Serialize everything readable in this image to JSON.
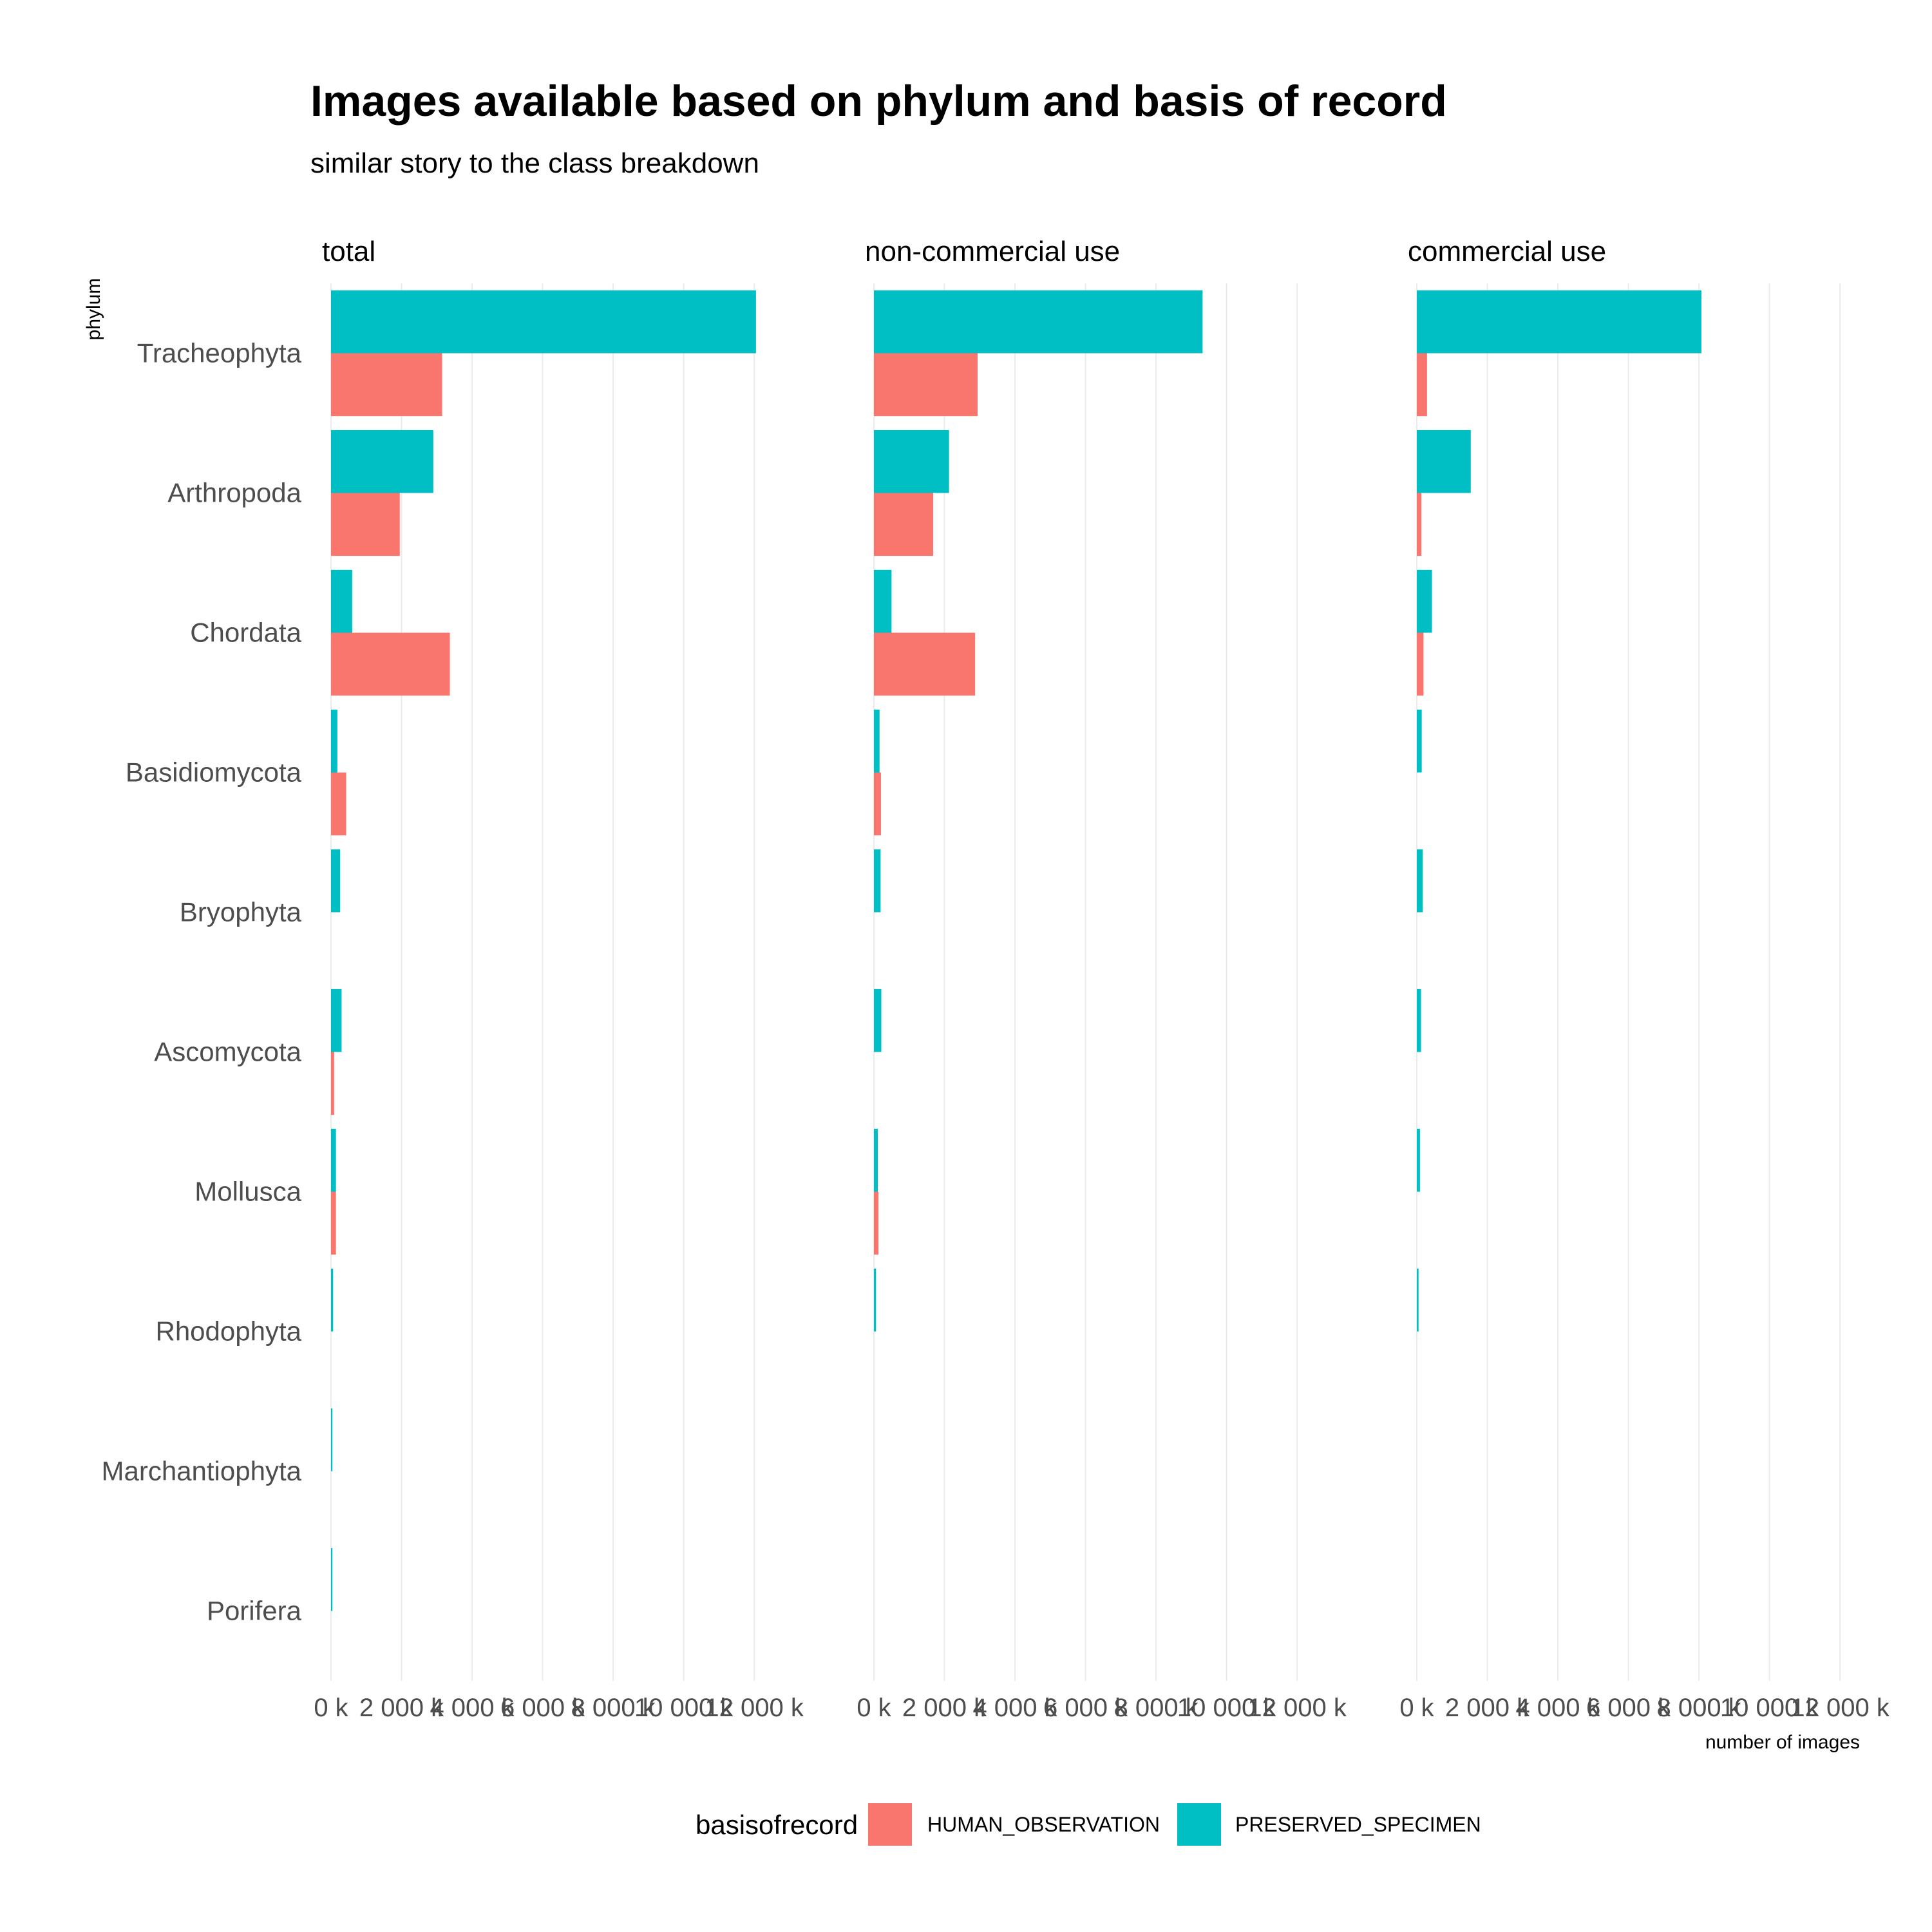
{
  "chart_data": {
    "type": "bar",
    "orientation": "horizontal",
    "title": "Images available based on phylum and basis of record",
    "subtitle": "similar story to the class breakdown",
    "ylabel": "phylum",
    "xlabel": "number of images",
    "x_unit": "k",
    "xlim": [
      0,
      12600
    ],
    "x_ticks": [
      0,
      2000,
      4000,
      6000,
      8000,
      10000,
      12000
    ],
    "x_tick_labels": [
      "0 k",
      "2 000 k",
      "4 000 k",
      "6 000 k",
      "8 000 k",
      "10 000 k",
      "12 000 k"
    ],
    "grid": true,
    "categories": [
      "Tracheophyta",
      "Arthropoda",
      "Chordata",
      "Basidiomycota",
      "Bryophyta",
      "Ascomycota",
      "Mollusca",
      "Rhodophyta",
      "Marchantiophyta",
      "Porifera"
    ],
    "legend": {
      "title": "basisofrecord",
      "position": "bottom",
      "entries": [
        {
          "name": "HUMAN_OBSERVATION",
          "color": "#F8766D"
        },
        {
          "name": "PRESERVED_SPECIMEN",
          "color": "#00BFC4"
        }
      ]
    },
    "panels": [
      {
        "label": "total",
        "series": [
          {
            "name": "PRESERVED_SPECIMEN",
            "values": [
              12050,
              2900,
              600,
              180,
              260,
              300,
              140,
              60,
              40,
              40
            ]
          },
          {
            "name": "HUMAN_OBSERVATION",
            "values": [
              3150,
              1950,
              3370,
              430,
              0,
              90,
              140,
              0,
              0,
              0
            ]
          }
        ]
      },
      {
        "label": "non-commercial use",
        "series": [
          {
            "name": "PRESERVED_SPECIMEN",
            "values": [
              9320,
              2130,
              500,
              160,
              190,
              210,
              110,
              60,
              0,
              0
            ]
          },
          {
            "name": "HUMAN_OBSERVATION",
            "values": [
              2940,
              1680,
              2870,
              200,
              0,
              0,
              130,
              0,
              0,
              0
            ]
          }
        ]
      },
      {
        "label": "commercial use",
        "series": [
          {
            "name": "PRESERVED_SPECIMEN",
            "values": [
              8070,
              1530,
              430,
              140,
              170,
              120,
              90,
              50,
              0,
              0
            ]
          },
          {
            "name": "HUMAN_OBSERVATION",
            "values": [
              290,
              130,
              190,
              0,
              0,
              0,
              0,
              0,
              0,
              0
            ]
          }
        ]
      }
    ]
  }
}
